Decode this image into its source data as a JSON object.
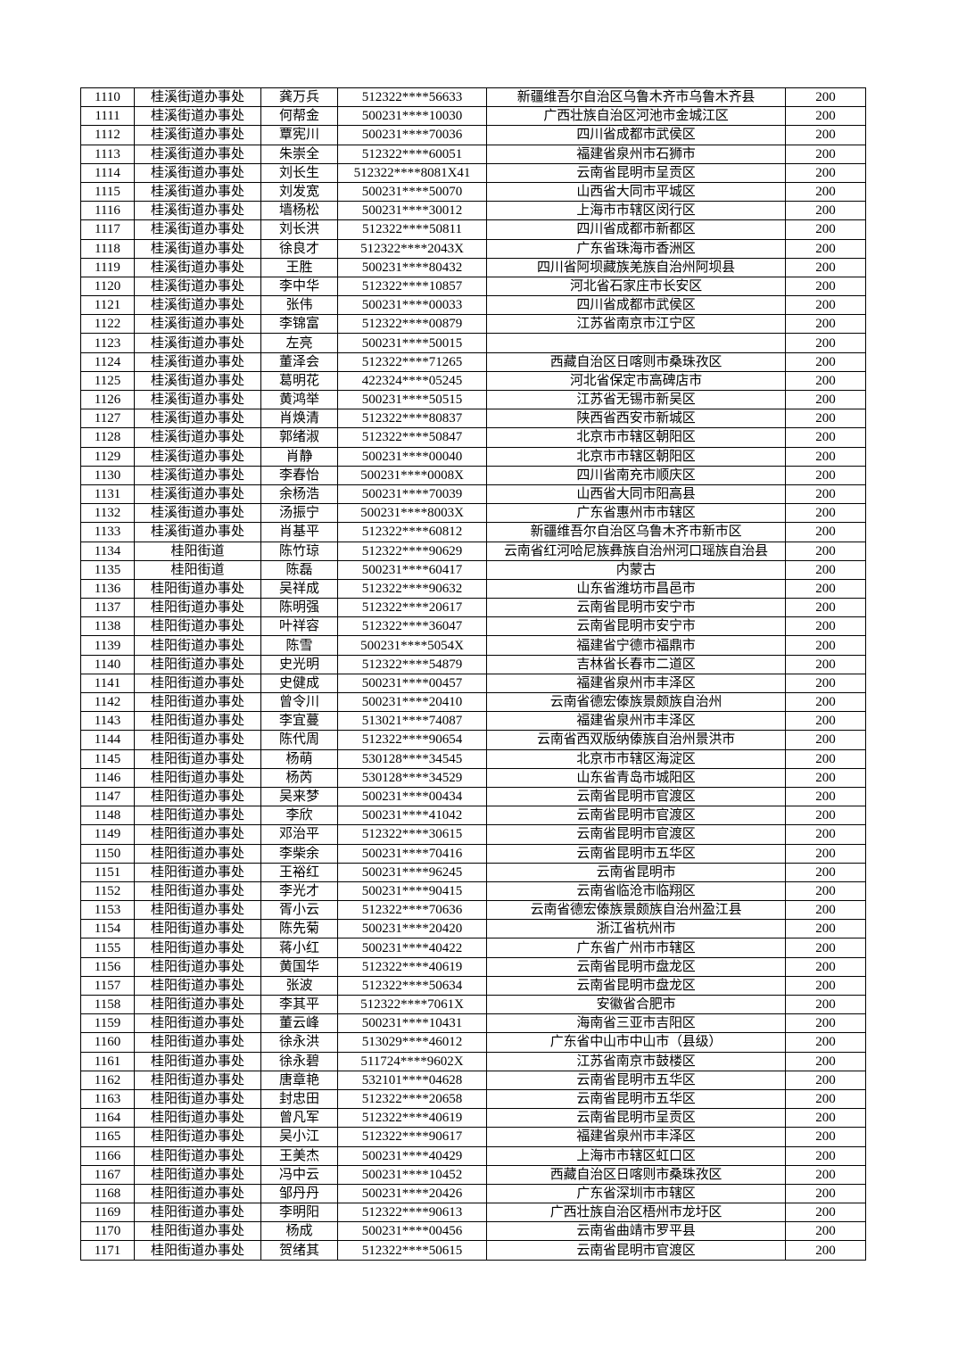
{
  "rows": [
    [
      "1110",
      "桂溪街道办事处",
      "龚万兵",
      "512322****56633",
      "新疆维吾尔自治区乌鲁木齐市乌鲁木齐县",
      "200"
    ],
    [
      "1111",
      "桂溪街道办事处",
      "何帮金",
      "500231****10030",
      "广西壮族自治区河池市金城江区",
      "200"
    ],
    [
      "1112",
      "桂溪街道办事处",
      "覃宪川",
      "500231****70036",
      "四川省成都市武侯区",
      "200"
    ],
    [
      "1113",
      "桂溪街道办事处",
      "朱崇全",
      "512322****60051",
      "福建省泉州市石狮市",
      "200"
    ],
    [
      "1114",
      "桂溪街道办事处",
      "刘长生",
      "512322****8081X41",
      "云南省昆明市呈贡区",
      "200"
    ],
    [
      "1115",
      "桂溪街道办事处",
      "刘发宽",
      "500231****50070",
      "山西省大同市平城区",
      "200"
    ],
    [
      "1116",
      "桂溪街道办事处",
      "墙杨松",
      "500231****30012",
      "上海市市辖区闵行区",
      "200"
    ],
    [
      "1117",
      "桂溪街道办事处",
      "刘长洪",
      "512322****50811",
      "四川省成都市新都区",
      "200"
    ],
    [
      "1118",
      "桂溪街道办事处",
      "徐良才",
      "512322****2043X",
      "广东省珠海市香洲区",
      "200"
    ],
    [
      "1119",
      "桂溪街道办事处",
      "王胜",
      "500231****80432",
      "四川省阿坝藏族羌族自治州阿坝县",
      "200"
    ],
    [
      "1120",
      "桂溪街道办事处",
      "李中华",
      "512322****10857",
      "河北省石家庄市长安区",
      "200"
    ],
    [
      "1121",
      "桂溪街道办事处",
      "张伟",
      "500231****00033",
      "四川省成都市武侯区",
      "200"
    ],
    [
      "1122",
      "桂溪街道办事处",
      "李锦富",
      "512322****00879",
      "江苏省南京市江宁区",
      "200"
    ],
    [
      "1123",
      "桂溪街道办事处",
      "左亮",
      "500231****50015",
      "",
      "200"
    ],
    [
      "1124",
      "桂溪街道办事处",
      "董泽会",
      "512322****71265",
      "西藏自治区日喀则市桑珠孜区",
      "200"
    ],
    [
      "1125",
      "桂溪街道办事处",
      "葛明花",
      "422324****05245",
      "河北省保定市高碑店市",
      "200"
    ],
    [
      "1126",
      "桂溪街道办事处",
      "黄鸿举",
      "500231****50515",
      "江苏省无锡市新吴区",
      "200"
    ],
    [
      "1127",
      "桂溪街道办事处",
      "肖焕清",
      "512322****80837",
      "陕西省西安市新城区",
      "200"
    ],
    [
      "1128",
      "桂溪街道办事处",
      "郭绪淑",
      "512322****50847",
      "北京市市辖区朝阳区",
      "200"
    ],
    [
      "1129",
      "桂溪街道办事处",
      "肖静",
      "500231****00040",
      "北京市市辖区朝阳区",
      "200"
    ],
    [
      "1130",
      "桂溪街道办事处",
      "李春怡",
      "500231****0008X",
      "四川省南充市顺庆区",
      "200"
    ],
    [
      "1131",
      "桂溪街道办事处",
      "余杨浩",
      "500231****70039",
      "山西省大同市阳高县",
      "200"
    ],
    [
      "1132",
      "桂溪街道办事处",
      "汤振宁",
      "500231****8003X",
      "广东省惠州市市辖区",
      "200"
    ],
    [
      "1133",
      "桂溪街道办事处",
      "肖基平",
      "512322****60812",
      "新疆维吾尔自治区乌鲁木齐市新市区",
      "200"
    ],
    [
      "1134",
      "桂阳街道",
      "陈竹琼",
      "512322****90629",
      "云南省红河哈尼族彝族自治州河口瑶族自治县",
      "200"
    ],
    [
      "1135",
      "桂阳街道",
      "陈磊",
      "500231****60417",
      "内蒙古",
      "200"
    ],
    [
      "1136",
      "桂阳街道办事处",
      "吴祥成",
      "512322****90632",
      "山东省潍坊市昌邑市",
      "200"
    ],
    [
      "1137",
      "桂阳街道办事处",
      "陈明强",
      "512322****20617",
      "云南省昆明市安宁市",
      "200"
    ],
    [
      "1138",
      "桂阳街道办事处",
      "叶祥容",
      "512322****36047",
      "云南省昆明市安宁市",
      "200"
    ],
    [
      "1139",
      "桂阳街道办事处",
      "陈雪",
      "500231****5054X",
      "福建省宁德市福鼎市",
      "200"
    ],
    [
      "1140",
      "桂阳街道办事处",
      "史光明",
      "512322****54879",
      "吉林省长春市二道区",
      "200"
    ],
    [
      "1141",
      "桂阳街道办事处",
      "史健成",
      "500231****00457",
      "福建省泉州市丰泽区",
      "200"
    ],
    [
      "1142",
      "桂阳街道办事处",
      "曾令川",
      "500231****20410",
      "云南省德宏傣族景颇族自治州",
      "200"
    ],
    [
      "1143",
      "桂阳街道办事处",
      "李宜蔓",
      "513021****74087",
      "福建省泉州市丰泽区",
      "200"
    ],
    [
      "1144",
      "桂阳街道办事处",
      "陈代周",
      "512322****90654",
      "云南省西双版纳傣族自治州景洪市",
      "200"
    ],
    [
      "1145",
      "桂阳街道办事处",
      "杨萌",
      "530128****34545",
      "北京市市辖区海淀区",
      "200"
    ],
    [
      "1146",
      "桂阳街道办事处",
      "杨芮",
      "530128****34529",
      "山东省青岛市城阳区",
      "200"
    ],
    [
      "1147",
      "桂阳街道办事处",
      "吴来梦",
      "500231****00434",
      "云南省昆明市官渡区",
      "200"
    ],
    [
      "1148",
      "桂阳街道办事处",
      "李欣",
      "500231****41042",
      "云南省昆明市官渡区",
      "200"
    ],
    [
      "1149",
      "桂阳街道办事处",
      "邓治平",
      "512322****30615",
      "云南省昆明市官渡区",
      "200"
    ],
    [
      "1150",
      "桂阳街道办事处",
      "李柴余",
      "500231****70416",
      "云南省昆明市五华区",
      "200"
    ],
    [
      "1151",
      "桂阳街道办事处",
      "王裕红",
      "500231****96245",
      "云南省昆明市",
      "200"
    ],
    [
      "1152",
      "桂阳街道办事处",
      "李光才",
      "500231****90415",
      "云南省临沧市临翔区",
      "200"
    ],
    [
      "1153",
      "桂阳街道办事处",
      "胥小云",
      "512322****70636",
      "云南省德宏傣族景颇族自治州盈江县",
      "200"
    ],
    [
      "1154",
      "桂阳街道办事处",
      "陈先菊",
      "500231****20420",
      "浙江省杭州市",
      "200"
    ],
    [
      "1155",
      "桂阳街道办事处",
      "蒋小红",
      "500231****40422",
      "广东省广州市市辖区",
      "200"
    ],
    [
      "1156",
      "桂阳街道办事处",
      "黄国华",
      "512322****40619",
      "云南省昆明市盘龙区",
      "200"
    ],
    [
      "1157",
      "桂阳街道办事处",
      "张波",
      "512322****50634",
      "云南省昆明市盘龙区",
      "200"
    ],
    [
      "1158",
      "桂阳街道办事处",
      "李其平",
      "512322****7061X",
      "安徽省合肥市",
      "200"
    ],
    [
      "1159",
      "桂阳街道办事处",
      "董云峰",
      "500231****10431",
      "海南省三亚市吉阳区",
      "200"
    ],
    [
      "1160",
      "桂阳街道办事处",
      "徐永洪",
      "513029****46012",
      "广东省中山市中山市（县级）",
      "200"
    ],
    [
      "1161",
      "桂阳街道办事处",
      "徐永碧",
      "511724****9602X",
      "江苏省南京市鼓楼区",
      "200"
    ],
    [
      "1162",
      "桂阳街道办事处",
      "唐章艳",
      "532101****04628",
      "云南省昆明市五华区",
      "200"
    ],
    [
      "1163",
      "桂阳街道办事处",
      "封忠田",
      "512322****20658",
      "云南省昆明市五华区",
      "200"
    ],
    [
      "1164",
      "桂阳街道办事处",
      "曾凡军",
      "512322****40619",
      "云南省昆明市呈贡区",
      "200"
    ],
    [
      "1165",
      "桂阳街道办事处",
      "吴小江",
      "512322****90617",
      "福建省泉州市丰泽区",
      "200"
    ],
    [
      "1166",
      "桂阳街道办事处",
      "王美杰",
      "500231****40429",
      "上海市市辖区虹口区",
      "200"
    ],
    [
      "1167",
      "桂阳街道办事处",
      "冯中云",
      "500231****10452",
      "西藏自治区日喀则市桑珠孜区",
      "200"
    ],
    [
      "1168",
      "桂阳街道办事处",
      "邹丹丹",
      "500231****20426",
      "广东省深圳市市辖区",
      "200"
    ],
    [
      "1169",
      "桂阳街道办事处",
      "李明阳",
      "512322****90613",
      "广西壮族自治区梧州市龙圩区",
      "200"
    ],
    [
      "1170",
      "桂阳街道办事处",
      "杨成",
      "500231****00456",
      "云南省曲靖市罗平县",
      "200"
    ],
    [
      "1171",
      "桂阳街道办事处",
      "贺绪其",
      "512322****50615",
      "云南省昆明市官渡区",
      "200"
    ]
  ]
}
